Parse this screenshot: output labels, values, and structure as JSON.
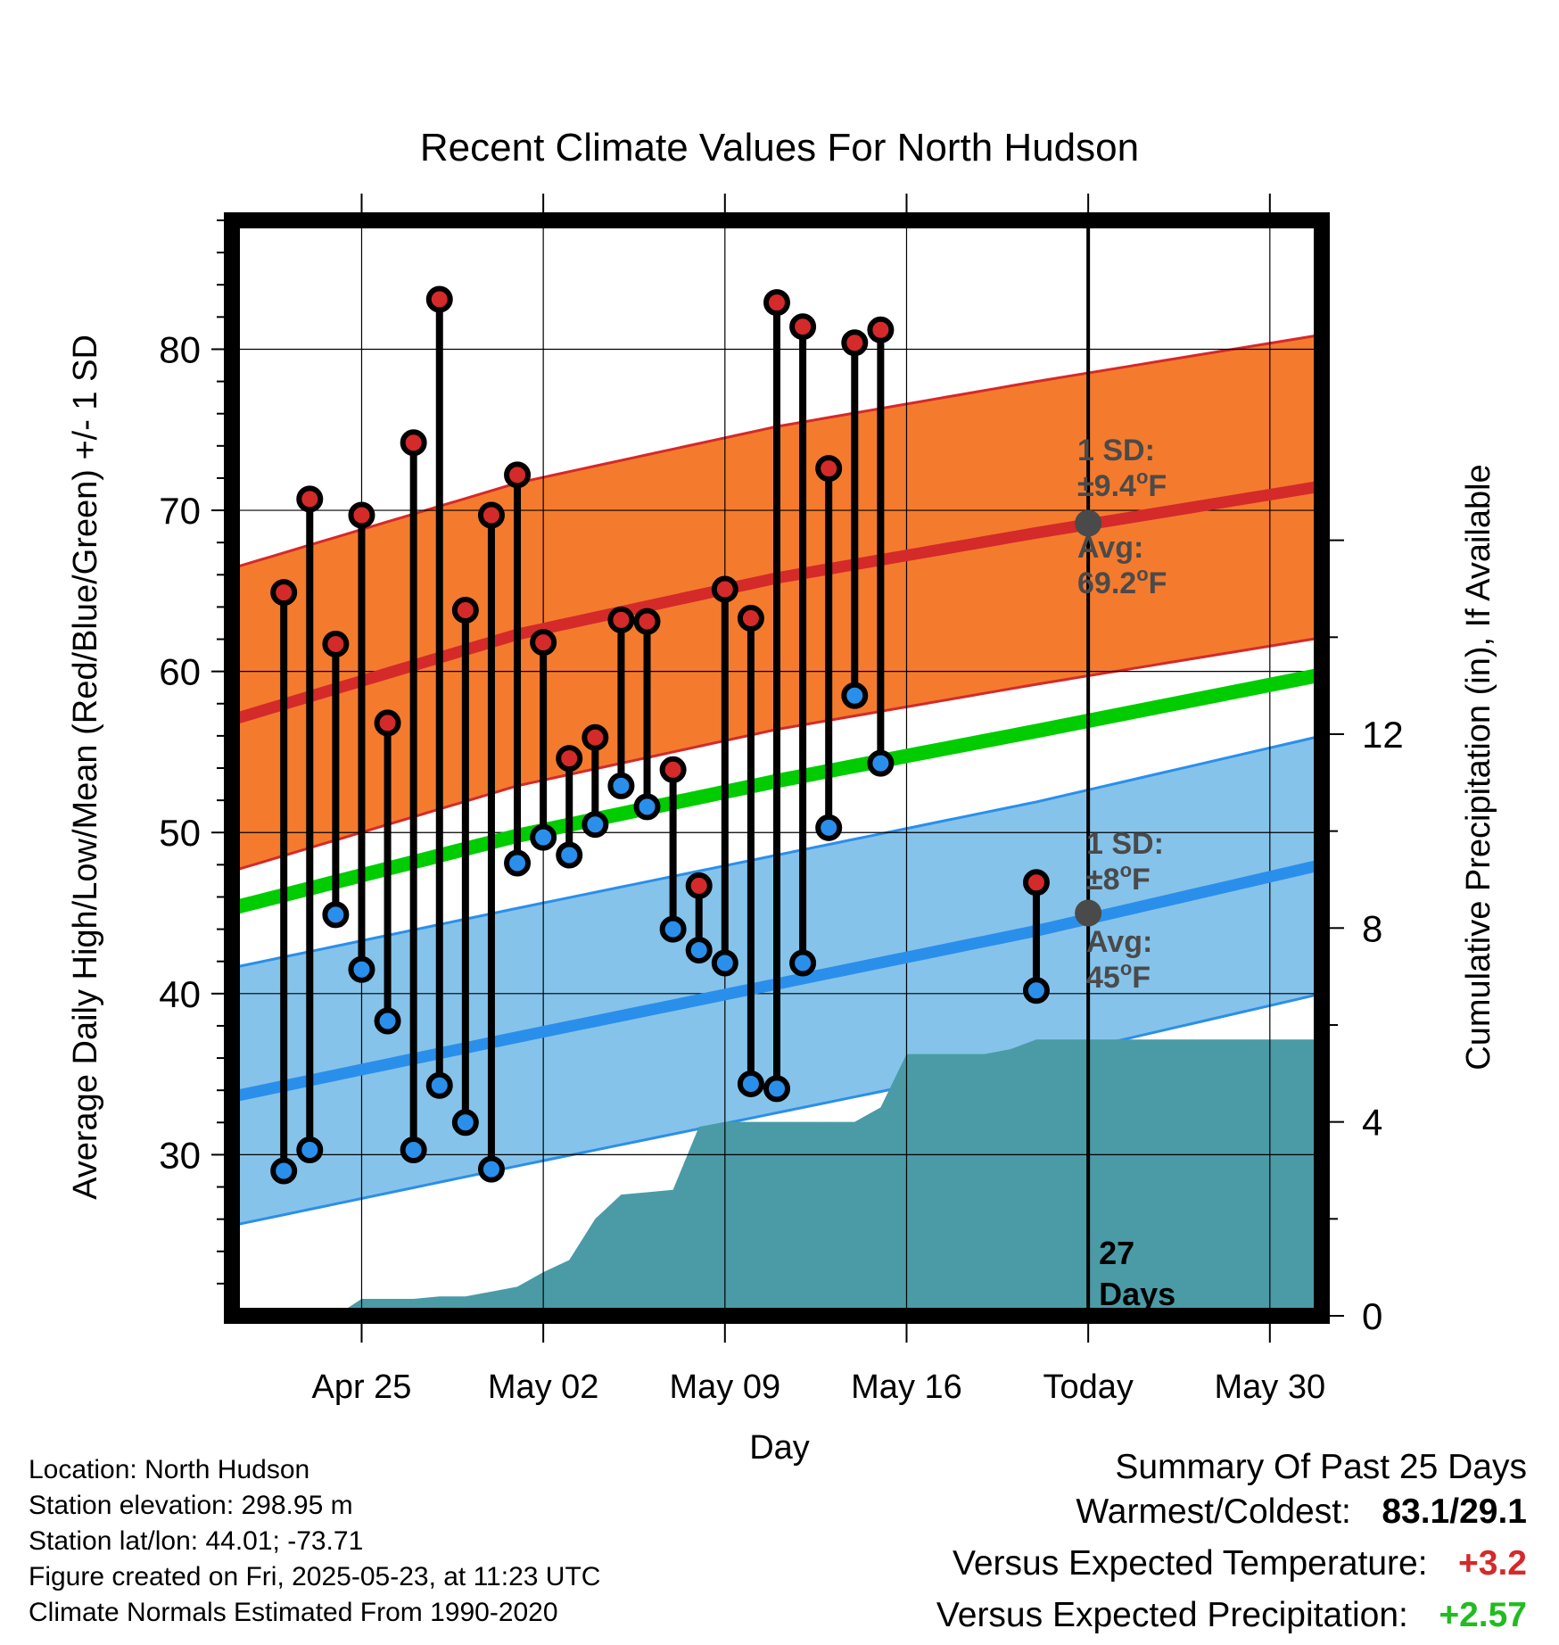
{
  "chart_data": {
    "type": "line",
    "title": "Recent Climate Values For North Hudson",
    "xlabel": "Day",
    "ylabel": "Average Daily High/Low/Mean (Red/Blue/Green) +/- 1 SD",
    "y2label": "Cumulative Precipitation (in), If Available",
    "ylim": [
      20,
      88
    ],
    "y2lim": [
      0,
      22.6
    ],
    "yticks": [
      "30",
      "40",
      "50",
      "60",
      "70",
      "80"
    ],
    "y2ticks": [
      "0",
      "4",
      "8",
      "12"
    ],
    "xlim": [
      "2025-04-20",
      "2025-06-01"
    ],
    "xticks": [
      {
        "date": "2025-04-25",
        "label": "Apr 25"
      },
      {
        "date": "2025-05-02",
        "label": "May 02"
      },
      {
        "date": "2025-05-09",
        "label": "May 09"
      },
      {
        "date": "2025-05-16",
        "label": "May 16"
      },
      {
        "date": "2025-05-23",
        "label": "Today"
      },
      {
        "date": "2025-05-30",
        "label": "May 30"
      }
    ],
    "today": "2025-05-23",
    "today_label": [
      "27",
      "Days"
    ],
    "colors": {
      "high": "#d42a2a",
      "low": "#2a8fea",
      "mean": "#00cc00",
      "high_band": "#f47b2d",
      "low_band": "#86c3ea",
      "precip": "#4a9ba6"
    },
    "normals": {
      "dates": [
        "2025-04-20",
        "2025-05-01",
        "2025-05-11",
        "2025-05-21",
        "2025-06-01"
      ],
      "high_avg": [
        57.0,
        62.3,
        65.8,
        68.6,
        71.5
      ],
      "high_sd": 9.4,
      "low_avg": [
        33.6,
        37.3,
        40.6,
        43.9,
        48.0
      ],
      "low_sd": 8,
      "mean": [
        45.3,
        49.8,
        53.2,
        56.3,
        59.8
      ]
    },
    "daily": [
      {
        "date": "2025-04-22",
        "high": 64.9,
        "low": 29.0
      },
      {
        "date": "2025-04-23",
        "high": 70.7,
        "low": 30.3
      },
      {
        "date": "2025-04-24",
        "high": 61.7,
        "low": 44.9
      },
      {
        "date": "2025-04-25",
        "high": 69.7,
        "low": 41.5
      },
      {
        "date": "2025-04-26",
        "high": 56.8,
        "low": 38.3
      },
      {
        "date": "2025-04-27",
        "high": 74.2,
        "low": 30.3
      },
      {
        "date": "2025-04-28",
        "high": 83.1,
        "low": 34.3
      },
      {
        "date": "2025-04-29",
        "high": 63.8,
        "low": 32.0
      },
      {
        "date": "2025-04-30",
        "high": 69.7,
        "low": 29.1
      },
      {
        "date": "2025-05-01",
        "high": 72.2,
        "low": 48.1
      },
      {
        "date": "2025-05-02",
        "high": 61.8,
        "low": 49.7
      },
      {
        "date": "2025-05-03",
        "high": 54.6,
        "low": 48.6
      },
      {
        "date": "2025-05-04",
        "high": 55.9,
        "low": 50.5
      },
      {
        "date": "2025-05-05",
        "high": 63.2,
        "low": 52.9
      },
      {
        "date": "2025-05-06",
        "high": 63.1,
        "low": 51.6
      },
      {
        "date": "2025-05-07",
        "high": 53.9,
        "low": 44.0
      },
      {
        "date": "2025-05-08",
        "high": 46.7,
        "low": 42.7
      },
      {
        "date": "2025-05-09",
        "high": 65.1,
        "low": 41.9
      },
      {
        "date": "2025-05-10",
        "high": 63.3,
        "low": 34.4
      },
      {
        "date": "2025-05-11",
        "high": 82.9,
        "low": 34.1
      },
      {
        "date": "2025-05-12",
        "high": 81.4,
        "low": 41.9
      },
      {
        "date": "2025-05-13",
        "high": 72.6,
        "low": 50.3
      },
      {
        "date": "2025-05-14",
        "high": 80.4,
        "low": 58.5
      },
      {
        "date": "2025-05-15",
        "high": 81.2,
        "low": 54.3
      },
      {
        "date": "2025-05-21",
        "high": 46.9,
        "low": 40.2
      }
    ],
    "precip": {
      "dates": [
        "2025-04-24",
        "2025-04-25",
        "2025-04-26",
        "2025-04-27",
        "2025-04-28",
        "2025-04-29",
        "2025-04-30",
        "2025-05-01",
        "2025-05-02",
        "2025-05-03",
        "2025-05-04",
        "2025-05-05",
        "2025-05-06",
        "2025-05-07",
        "2025-05-08",
        "2025-05-09",
        "2025-05-10",
        "2025-05-11",
        "2025-05-12",
        "2025-05-13",
        "2025-05-14",
        "2025-05-15",
        "2025-05-16",
        "2025-05-17",
        "2025-05-18",
        "2025-05-19",
        "2025-05-20",
        "2025-05-21",
        "2025-05-22",
        "2025-05-23",
        "2025-06-01"
      ],
      "values": [
        0.0,
        0.35,
        0.35,
        0.35,
        0.4,
        0.4,
        0.5,
        0.6,
        0.9,
        1.15,
        2.0,
        2.5,
        2.55,
        2.6,
        3.9,
        4.0,
        4.0,
        4.0,
        4.0,
        4.0,
        4.0,
        4.3,
        5.4,
        5.4,
        5.4,
        5.4,
        5.5,
        5.7,
        5.7,
        5.7,
        5.7
      ]
    },
    "annotations": {
      "high": {
        "sd": "1 SD:",
        "sd_value": "±9.4",
        "avg": "Avg:",
        "avg_value": "69.2",
        "unit_sup": "o",
        "unit": "F",
        "value": 69.2
      },
      "low": {
        "sd": "1 SD:",
        "sd_value": "±8",
        "avg": "Avg:",
        "avg_value": "45",
        "unit_sup": "o",
        "unit": "F",
        "value": 45.0
      }
    }
  },
  "info": {
    "location": "Location: North Hudson",
    "elevation": "Station elevation: 298.95 m",
    "latlon": "Station lat/lon: 44.01; -73.71",
    "created": "Figure created on Fri, 2025-05-23, at 11:23 UTC",
    "normals": "Climate Normals Estimated From 1990-2020"
  },
  "summary": {
    "title": "Summary Of Past 25 Days",
    "warm_cold_label": "Warmest/Coldest:",
    "warm_cold_value": "83.1/29.1",
    "temp_label": "Versus Expected Temperature:",
    "temp_value": "+3.2",
    "temp_color": "#d42a2a",
    "precip_label": "Versus Expected Precipitation:",
    "precip_value": "+2.57",
    "precip_color": "#22bb22"
  }
}
